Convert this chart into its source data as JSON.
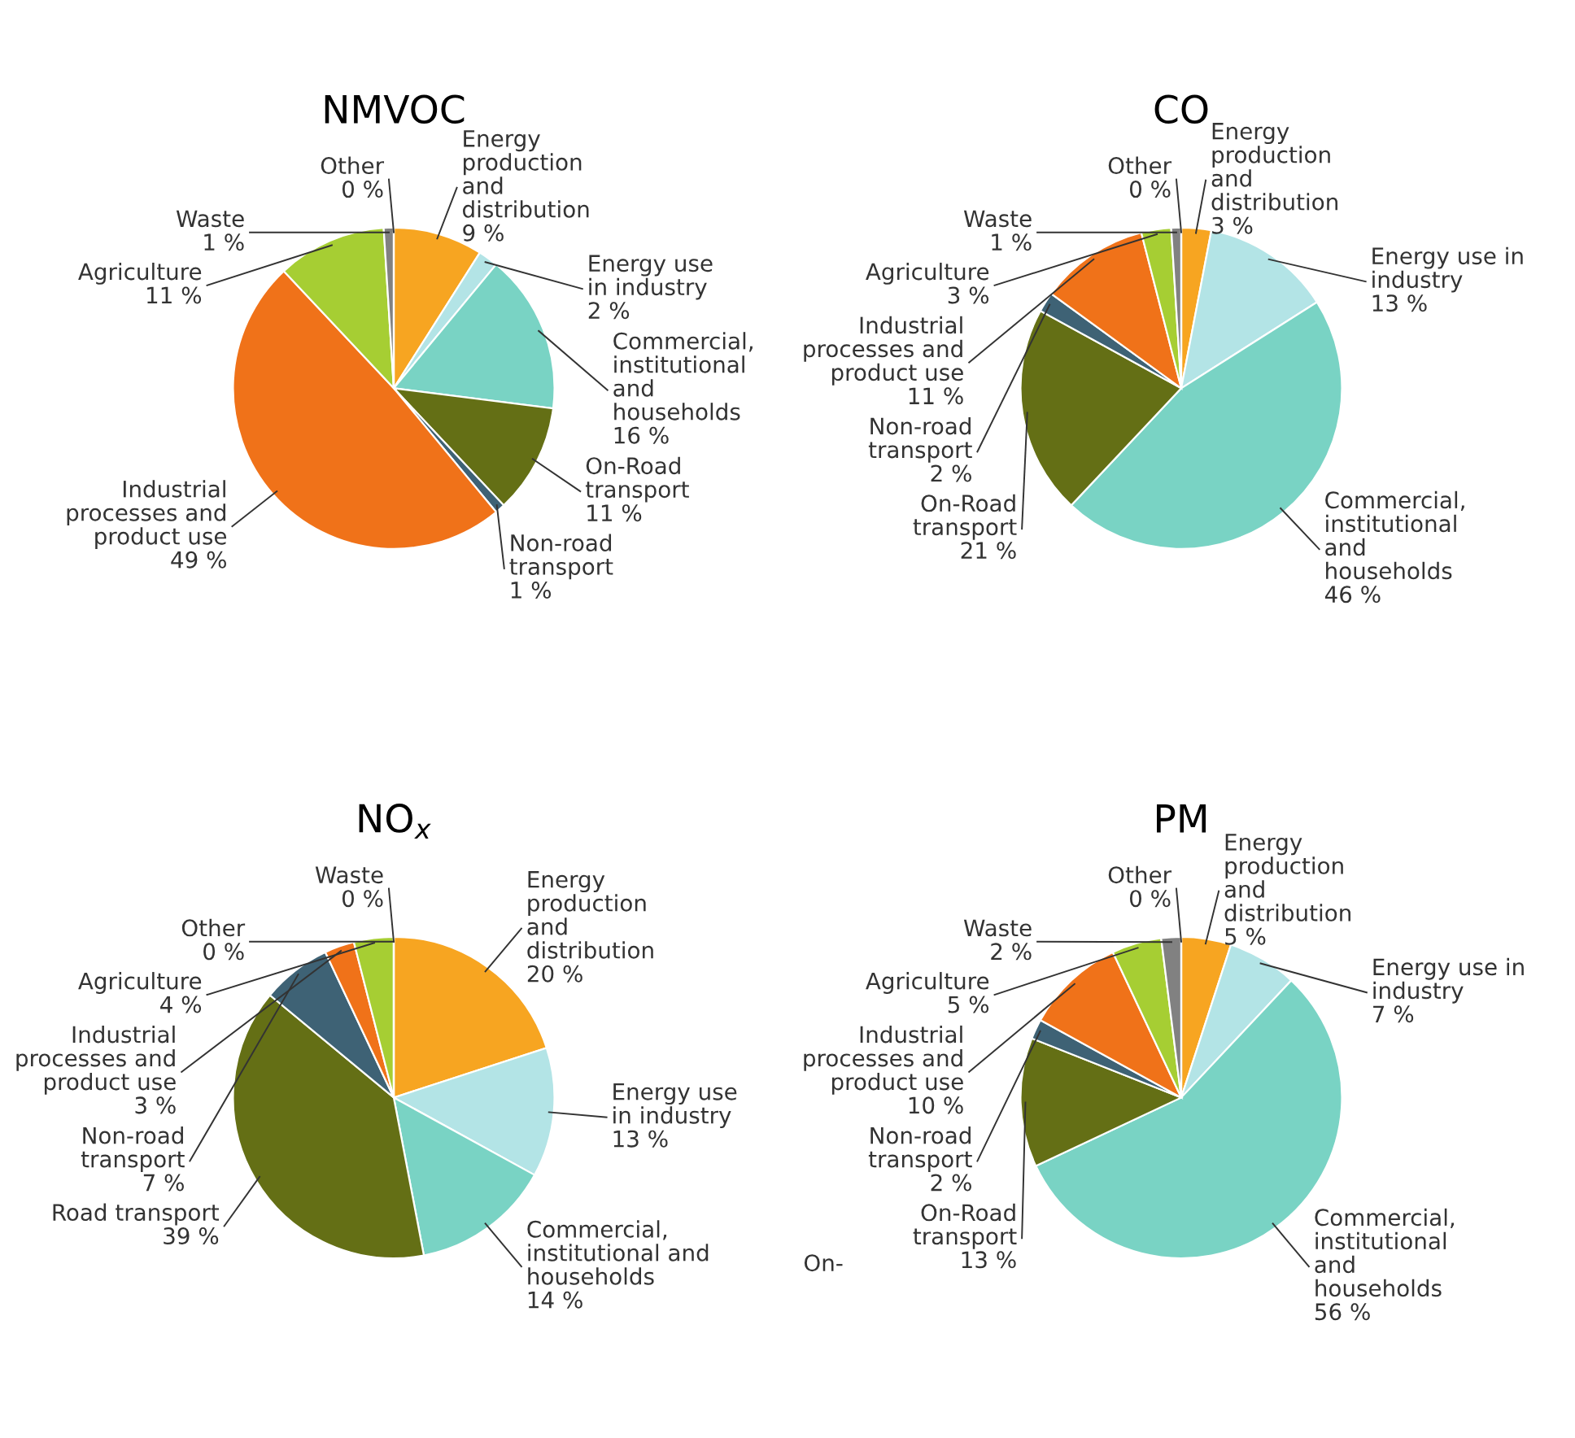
{
  "chart_data": [
    {
      "type": "pie",
      "title": "NMVOC",
      "categories": [
        "Energy\nproduction\nand\ndistribution",
        "Energy use\nin industry",
        "Commercial,\ninstitutional\nand\nhouseholds",
        "On-Road\ntransport",
        "Non-road\ntransport",
        "Industrial\nprocesses and\nproduct use",
        "Agriculture",
        "Waste",
        "Other"
      ],
      "values": [
        9,
        2,
        16,
        11,
        1,
        49,
        11,
        1,
        0
      ],
      "value_labels": [
        "9 %",
        "2 %",
        "16 %",
        "11 %",
        "1 %",
        "49 %",
        "11 %",
        "1 %",
        "0 %"
      ],
      "colors": [
        "#f7a521",
        "#b3e4e6",
        "#79d3c4",
        "#646f15",
        "#3e6275",
        "#f07219",
        "#a6ce33",
        "#818181",
        "#cccccc"
      ]
    },
    {
      "type": "pie",
      "title": "CO",
      "categories": [
        "Energy\nproduction\nand\ndistribution",
        "Energy use in\nindustry",
        "Commercial,\ninstitutional\nand\nhouseholds",
        "On-Road\ntransport",
        "Non-road\ntransport",
        "Industrial\nprocesses and\nproduct use",
        "Agriculture",
        "Waste",
        "Other"
      ],
      "values": [
        3,
        13,
        46,
        21,
        2,
        11,
        3,
        1,
        0
      ],
      "value_labels": [
        "3 %",
        "13 %",
        "46 %",
        "21 %",
        "2 %",
        "11 %",
        "3 %",
        "1 %",
        "0 %"
      ],
      "colors": [
        "#f7a521",
        "#b3e4e6",
        "#79d3c4",
        "#646f15",
        "#3e6275",
        "#f07219",
        "#a6ce33",
        "#818181",
        "#cccccc"
      ]
    },
    {
      "type": "pie",
      "title": "NO$_{x}$",
      "categories": [
        "Energy\nproduction\nand\ndistribution",
        "Energy use\nin industry",
        "Commercial,\ninstitutional and\nhouseholds",
        "Road transport",
        "Non-road\ntransport",
        "Industrial\nprocesses and\nproduct use",
        "Agriculture",
        "Waste",
        "Other"
      ],
      "values": [
        20,
        13,
        14,
        39,
        7,
        3,
        4,
        0,
        0
      ],
      "value_labels": [
        "20 %",
        "13 %",
        "14 %",
        "39 %",
        "7 %",
        "3 %",
        "4 %",
        "0 %",
        "0 %"
      ],
      "colors": [
        "#f7a521",
        "#b3e4e6",
        "#79d3c4",
        "#646f15",
        "#3e6275",
        "#f07219",
        "#a6ce33",
        "#818181",
        "#cccccc"
      ]
    },
    {
      "type": "pie",
      "title": "PM",
      "categories": [
        "Energy\nproduction\nand\ndistribution",
        "Energy use in\nindustry",
        "Commercial,\ninstitutional\nand\nhouseholds",
        "On-Road\ntransport",
        "Non-road\ntransport",
        "Industrial\nprocesses and\nproduct use",
        "Agriculture",
        "Waste",
        "Other"
      ],
      "values": [
        5,
        7,
        56,
        13,
        2,
        10,
        5,
        2,
        0
      ],
      "value_labels": [
        "5 %",
        "7 %",
        "56 %",
        "13 %",
        "2 %",
        "10 %",
        "5 %",
        "2 %",
        "0 %"
      ],
      "colors": [
        "#f7a521",
        "#b3e4e6",
        "#79d3c4",
        "#646f15",
        "#3e6275",
        "#f07219",
        "#a6ce33",
        "#818181",
        "#cccccc"
      ],
      "annotations": [
        "On-"
      ]
    }
  ]
}
